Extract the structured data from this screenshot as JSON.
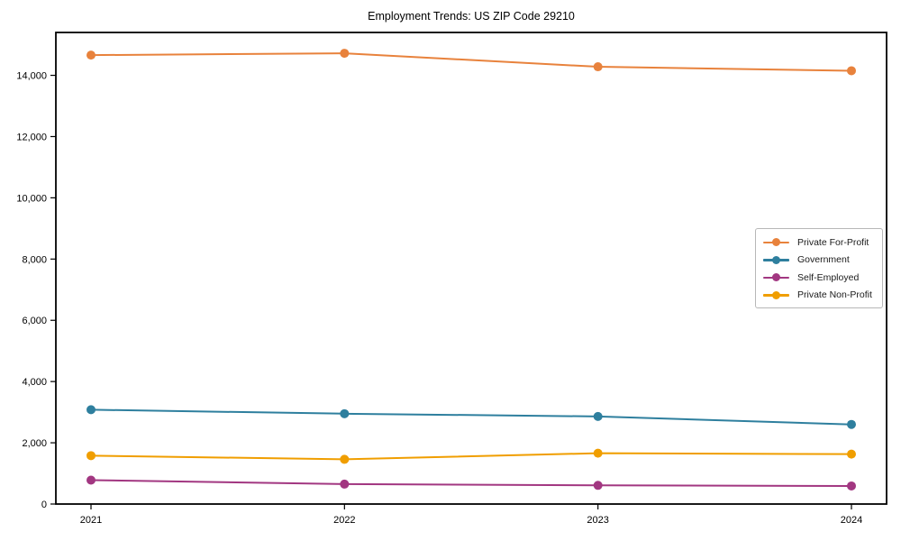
{
  "chart_data": {
    "type": "line",
    "title": "Employment Trends: US ZIP Code 29210",
    "categories": [
      "2021",
      "2022",
      "2023",
      "2024"
    ],
    "series": [
      {
        "name": "Private For-Profit",
        "color": "#e8823c",
        "values": [
          14660,
          14720,
          14280,
          14150
        ]
      },
      {
        "name": "Government",
        "color": "#2e7f9e",
        "values": [
          3080,
          2950,
          2860,
          2600
        ]
      },
      {
        "name": "Self-Employed",
        "color": "#a23781",
        "values": [
          780,
          650,
          610,
          590
        ]
      },
      {
        "name": "Private Non-Profit",
        "color": "#f09e00",
        "values": [
          1580,
          1460,
          1660,
          1630
        ]
      }
    ],
    "xlabel": "",
    "ylabel": "",
    "ylim": [
      0,
      15400
    ],
    "y_ticks": {
      "values": [
        0,
        2000,
        4000,
        6000,
        8000,
        10000,
        12000,
        14000
      ],
      "labels": [
        "0",
        "2,000",
        "4,000",
        "6,000",
        "8,000",
        "10,000",
        "12,000",
        "14,000"
      ]
    },
    "grid": false,
    "legend_position": "center-right",
    "axis_color": "#000000",
    "background_color": "#ffffff"
  }
}
